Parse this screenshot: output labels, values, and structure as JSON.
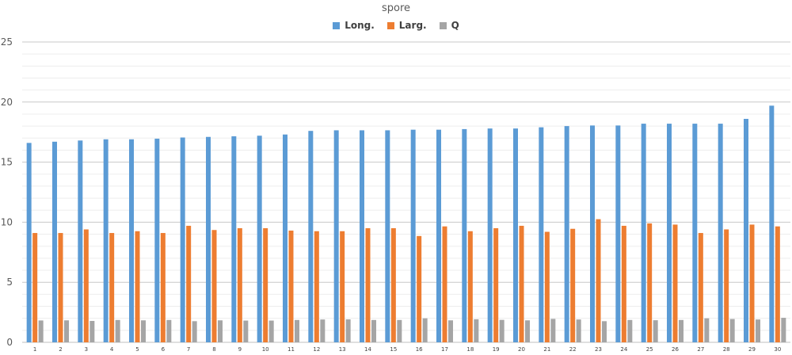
{
  "chart_data": {
    "type": "bar",
    "title": "spore",
    "categories": [
      "1",
      "2",
      "3",
      "4",
      "5",
      "6",
      "7",
      "8",
      "9",
      "10",
      "11",
      "12",
      "13",
      "14",
      "15",
      "16",
      "17",
      "18",
      "19",
      "20",
      "21",
      "22",
      "23",
      "24",
      "25",
      "26",
      "27",
      "28",
      "29",
      "30"
    ],
    "series": [
      {
        "name": "Long.",
        "color": "#5B9BD5",
        "values": [
          16.6,
          16.7,
          16.8,
          16.9,
          16.9,
          16.95,
          17.05,
          17.1,
          17.15,
          17.2,
          17.3,
          17.6,
          17.65,
          17.65,
          17.65,
          17.7,
          17.7,
          17.75,
          17.8,
          17.8,
          17.9,
          18.0,
          18.05,
          18.05,
          18.2,
          18.2,
          18.2,
          18.2,
          18.6,
          19.7
        ]
      },
      {
        "name": "Larg.",
        "color": "#ED7D31",
        "values": [
          9.1,
          9.1,
          9.4,
          9.1,
          9.25,
          9.1,
          9.7,
          9.35,
          9.5,
          9.5,
          9.3,
          9.25,
          9.25,
          9.5,
          9.5,
          8.85,
          9.65,
          9.25,
          9.5,
          9.7,
          9.2,
          9.45,
          10.25,
          9.7,
          9.9,
          9.8,
          9.1,
          9.4,
          9.8,
          9.65
        ]
      },
      {
        "name": "Q",
        "color": "#A5A5A5",
        "values": [
          1.82,
          1.83,
          1.78,
          1.86,
          1.83,
          1.86,
          1.76,
          1.83,
          1.81,
          1.81,
          1.86,
          1.9,
          1.91,
          1.86,
          1.86,
          2.0,
          1.83,
          1.92,
          1.87,
          1.83,
          1.95,
          1.9,
          1.76,
          1.86,
          1.84,
          1.86,
          2.0,
          1.94,
          1.9,
          2.04
        ]
      }
    ],
    "ylim": [
      0,
      25
    ],
    "yticks": [
      0,
      5,
      10,
      15,
      20,
      25
    ],
    "grid": true,
    "legend_position": "top-center"
  }
}
